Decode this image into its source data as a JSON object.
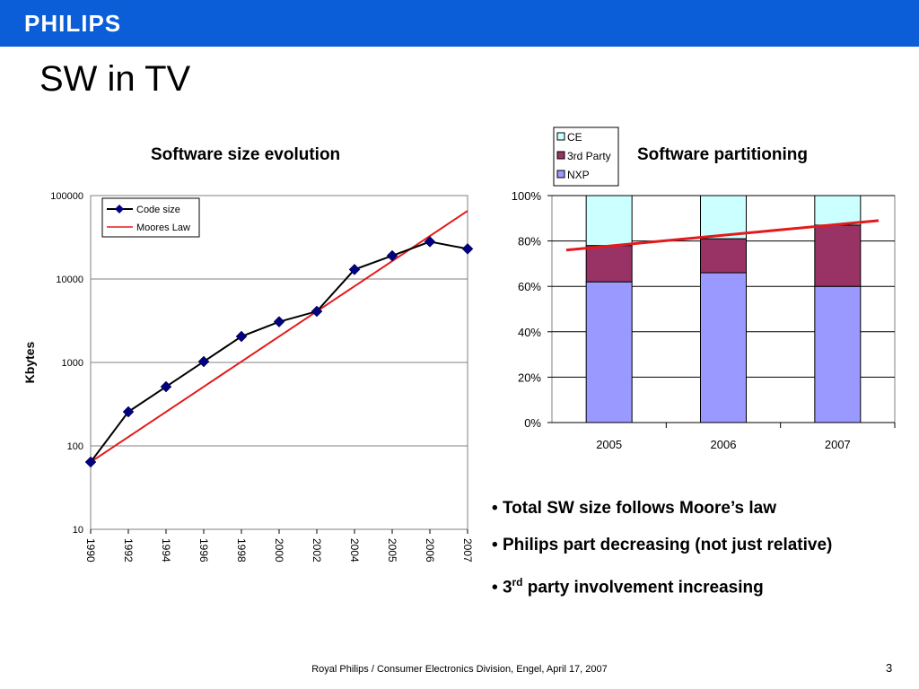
{
  "header": {
    "logo": "PHILIPS",
    "bar_color": "#0b5ed7"
  },
  "slide": {
    "title": "SW in TV"
  },
  "chart_data": [
    {
      "type": "line",
      "title": "Software size evolution",
      "ylabel": "Kbytes",
      "xlabel": "",
      "yscale": "log",
      "ylim": [
        10,
        100000
      ],
      "y_ticks": [
        "100000",
        "10000",
        "1000",
        "100",
        "10"
      ],
      "categories": [
        "1990",
        "1992",
        "1994",
        "1996",
        "1998",
        "2000",
        "2002",
        "2004",
        "2005",
        "2006",
        "2007"
      ],
      "series": [
        {
          "name": "Code size",
          "values": [
            64,
            256,
            512,
            1024,
            2048,
            3072,
            4096,
            13000,
            19000,
            28000,
            23000
          ],
          "color": "#000000",
          "marker_color": "#000080"
        },
        {
          "name": "Moores Law",
          "values": [
            64,
            128,
            256,
            512,
            1024,
            2048,
            4096,
            8192,
            16384,
            32768,
            65536
          ],
          "color": "#e31a1c"
        }
      ],
      "legend": "top-left",
      "grid": true
    },
    {
      "type": "bar",
      "stacked": true,
      "title": "Software partitioning",
      "categories": [
        "2005",
        "2006",
        "2007"
      ],
      "y_ticks": [
        "100%",
        "80%",
        "60%",
        "40%",
        "20%",
        "0%"
      ],
      "ylim": [
        0,
        100
      ],
      "series": [
        {
          "name": "NXP",
          "values": [
            62,
            66,
            60
          ],
          "color": "#9999ff"
        },
        {
          "name": "3rd Party",
          "values": [
            16,
            15,
            27
          ],
          "color": "#993366"
        },
        {
          "name": "CE",
          "values": [
            22,
            19,
            13
          ],
          "color": "#ccffff"
        }
      ],
      "trend_line": {
        "color": "#e31a1c",
        "values": [
          76,
          89
        ]
      },
      "legend": "top-left",
      "grid": true
    }
  ],
  "bullets": [
    {
      "text": "Total SW size follows Moore’s law"
    },
    {
      "text": "Philips part decreasing (not just relative)"
    },
    {
      "prefix": "3",
      "sup": "rd",
      "text": " party involvement increasing"
    }
  ],
  "footer": {
    "text": "Royal Philips / Consumer Electronics Division, Engel, April 17, 2007",
    "page": "3"
  }
}
